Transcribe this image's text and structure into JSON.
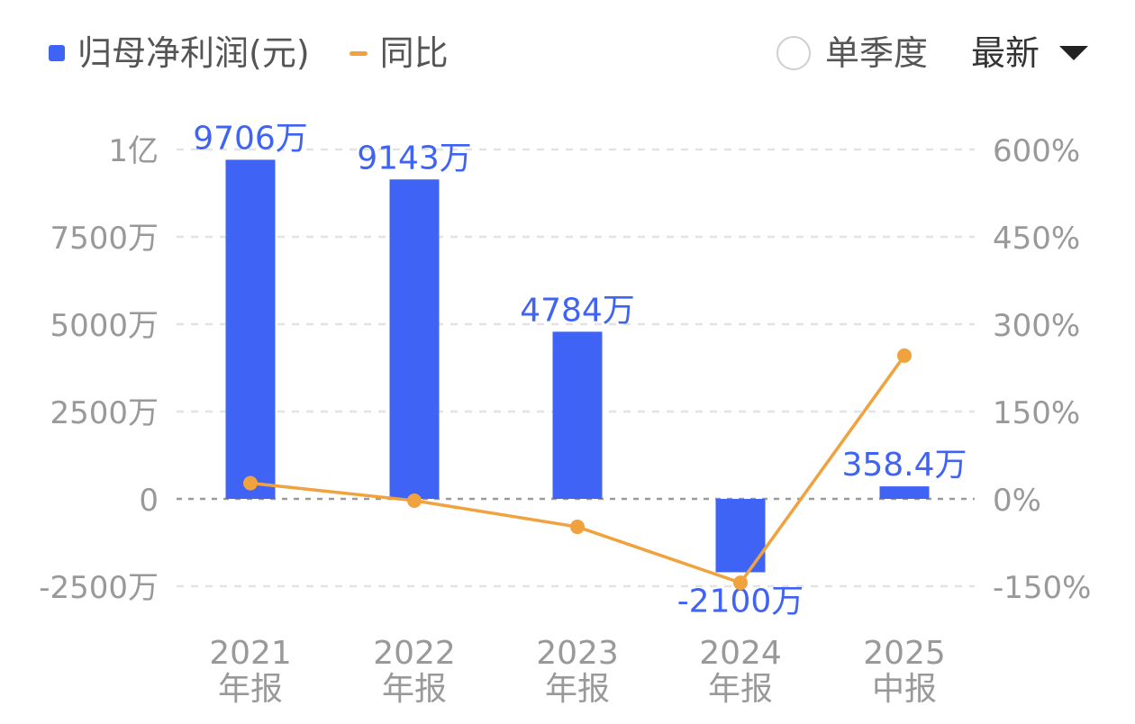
{
  "legend": {
    "bar_label": "归母净利润(元)",
    "line_label": "同比",
    "bar_color": "#3F63F4",
    "line_color": "#F0A23E"
  },
  "controls": {
    "single_quarter_label": "单季度",
    "latest_label": "最新"
  },
  "chart_data": {
    "type": "bar",
    "categories": [
      "2021\n年报",
      "2022\n年报",
      "2023\n年报",
      "2024\n年报",
      "2025\n中报"
    ],
    "series": [
      {
        "type": "bar",
        "values": [
          97060000,
          91430000,
          47840000,
          -21000000,
          3584000
        ],
        "data_labels": [
          "9706万",
          "9143万",
          "4784万",
          "-2100万",
          "358.4万"
        ],
        "color": "#3F63F4",
        "axis": "left"
      },
      {
        "type": "line",
        "values": [
          27,
          -3,
          -48,
          -144,
          246
        ],
        "color": "#F0A23E",
        "axis": "right"
      }
    ],
    "y_left": {
      "ticks": [
        100000000,
        75000000,
        50000000,
        25000000,
        0,
        -25000000
      ],
      "tick_labels": [
        "1亿",
        "7500万",
        "5000万",
        "2500万",
        "0",
        "-2500万"
      ],
      "range": [
        -25000000,
        100000000
      ]
    },
    "y_right": {
      "ticks": [
        600,
        450,
        300,
        150,
        0,
        -150
      ],
      "tick_labels": [
        "600%",
        "450%",
        "300%",
        "150%",
        "0%",
        "-150%"
      ],
      "range": [
        -150,
        600
      ]
    },
    "grid": true,
    "label_color": "#3F63F4",
    "axis_text_color": "#999999"
  }
}
